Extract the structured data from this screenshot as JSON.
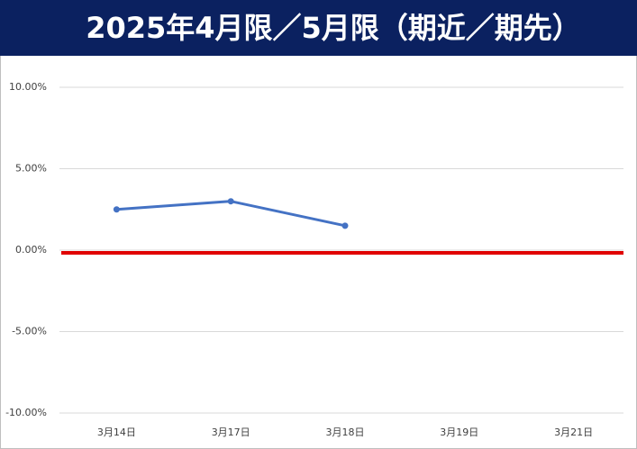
{
  "chart_data": {
    "type": "line",
    "title": "2025年4月限／5月限（期近／期先）",
    "categories": [
      "3月14日",
      "3月17日",
      "3月18日",
      "3月19日",
      "3月21日"
    ],
    "series": [
      {
        "color": "#4472c4",
        "values": [
          2.5,
          3.0,
          1.5,
          null,
          null
        ]
      }
    ],
    "ylim": [
      -10,
      10
    ],
    "yticks": [
      {
        "value": -10,
        "label": "-10.00%"
      },
      {
        "value": -5,
        "label": "-5.00%"
      },
      {
        "value": 0,
        "label": "0.00%"
      },
      {
        "value": 5,
        "label": "5.00%"
      },
      {
        "value": 10,
        "label": "10.00%"
      }
    ],
    "grid": true,
    "zero_line_color": "#e00000"
  }
}
